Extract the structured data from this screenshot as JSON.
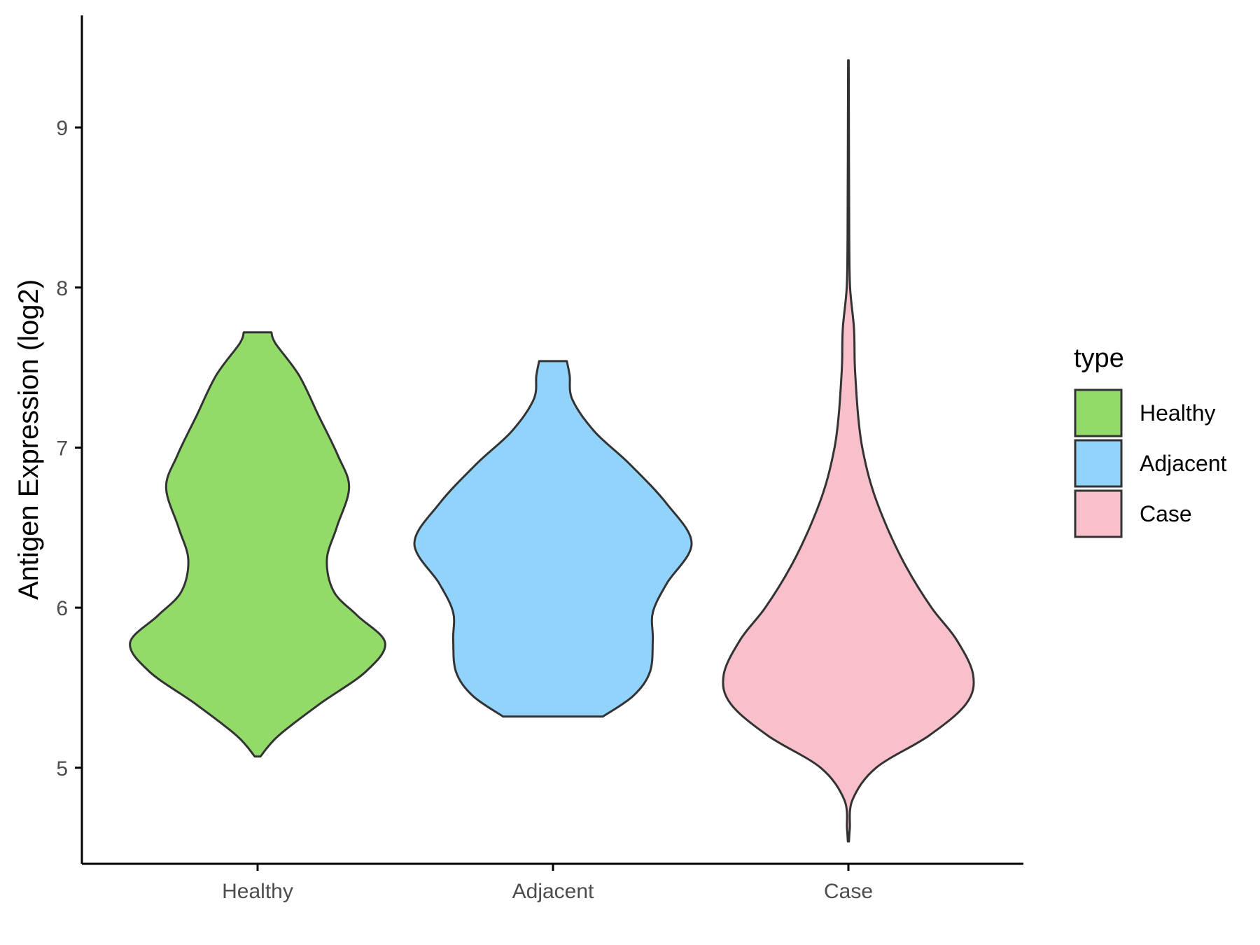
{
  "chart_data": {
    "type": "violin",
    "ylabel": "Antigen Expression (log2)",
    "xlabel": "",
    "ylim": [
      4.4,
      9.7
    ],
    "y_ticks": [
      5,
      6,
      7,
      8,
      9
    ],
    "grid": false,
    "legend_placement": "right",
    "legend": {
      "title": "type",
      "entries": [
        {
          "label": "Healthy",
          "color": "#93DB69"
        },
        {
          "label": "Adjacent",
          "color": "#92D3FC"
        },
        {
          "label": "Case",
          "color": "#F8C0CB"
        }
      ]
    },
    "categories": [
      "Healthy",
      "Adjacent",
      "Case"
    ],
    "series": [
      {
        "name": "Healthy",
        "color": "#93DB69",
        "density": [
          [
            5.07,
            0.02
          ],
          [
            5.2,
            0.15
          ],
          [
            5.4,
            0.45
          ],
          [
            5.6,
            0.78
          ],
          [
            5.78,
            0.92
          ],
          [
            5.95,
            0.72
          ],
          [
            6.1,
            0.55
          ],
          [
            6.3,
            0.5
          ],
          [
            6.5,
            0.57
          ],
          [
            6.75,
            0.66
          ],
          [
            6.95,
            0.58
          ],
          [
            7.2,
            0.44
          ],
          [
            7.45,
            0.3
          ],
          [
            7.65,
            0.13
          ],
          [
            7.72,
            0.1
          ]
        ]
      },
      {
        "name": "Adjacent",
        "color": "#92D3FC",
        "density": [
          [
            5.32,
            0.36
          ],
          [
            5.45,
            0.58
          ],
          [
            5.6,
            0.7
          ],
          [
            5.8,
            0.72
          ],
          [
            5.97,
            0.72
          ],
          [
            6.15,
            0.82
          ],
          [
            6.4,
            1.0
          ],
          [
            6.65,
            0.82
          ],
          [
            6.9,
            0.55
          ],
          [
            7.1,
            0.3
          ],
          [
            7.3,
            0.14
          ],
          [
            7.45,
            0.12
          ],
          [
            7.54,
            0.1
          ]
        ]
      },
      {
        "name": "Case",
        "color": "#F8C0CB",
        "density": [
          [
            4.54,
            0.004
          ],
          [
            4.62,
            0.01
          ],
          [
            4.8,
            0.03
          ],
          [
            5.0,
            0.2
          ],
          [
            5.2,
            0.58
          ],
          [
            5.4,
            0.85
          ],
          [
            5.58,
            0.9
          ],
          [
            5.8,
            0.78
          ],
          [
            6.0,
            0.6
          ],
          [
            6.25,
            0.42
          ],
          [
            6.5,
            0.28
          ],
          [
            6.75,
            0.17
          ],
          [
            7.0,
            0.1
          ],
          [
            7.2,
            0.07
          ],
          [
            7.45,
            0.05
          ],
          [
            7.55,
            0.045
          ],
          [
            7.75,
            0.04
          ],
          [
            8.0,
            0.012
          ],
          [
            8.3,
            0.006
          ],
          [
            8.8,
            0.004
          ],
          [
            9.42,
            0.002
          ]
        ]
      }
    ]
  }
}
